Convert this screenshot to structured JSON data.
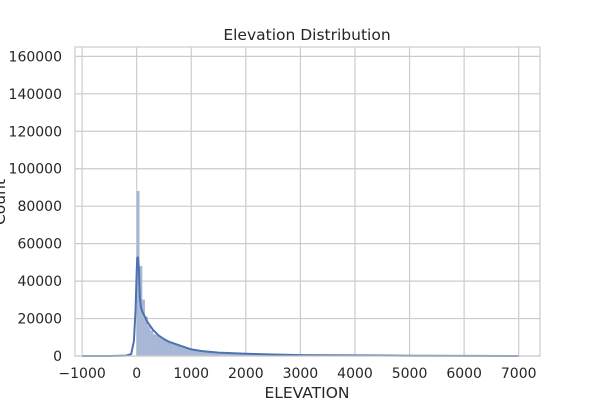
{
  "chart_data": {
    "type": "histogram",
    "title": "Elevation Distribution",
    "xlabel": "ELEVATION",
    "ylabel": "Count",
    "xlim": [
      -1130,
      7390
    ],
    "ylim": [
      0,
      165000
    ],
    "xticks": [
      -1000,
      0,
      1000,
      2000,
      3000,
      4000,
      5000,
      6000,
      7000
    ],
    "xtick_labels": [
      "−1000",
      "0",
      "1000",
      "2000",
      "3000",
      "4000",
      "5000",
      "6000",
      "7000"
    ],
    "yticks": [
      0,
      20000,
      40000,
      60000,
      80000,
      100000,
      120000,
      140000,
      160000
    ],
    "ytick_labels": [
      "0",
      "20000",
      "40000",
      "60000",
      "80000",
      "100000",
      "120000",
      "140000",
      "160000"
    ],
    "grid": true,
    "colors": {
      "bars": "#a7b7d6",
      "kde": "#4c72b0",
      "grid": "#cccccc",
      "spine": "#cccccc"
    },
    "kde": {
      "x": [
        -1000,
        -500,
        -200,
        -100,
        -50,
        -20,
        0,
        10,
        20,
        30,
        40,
        50,
        60,
        80,
        100,
        150,
        200,
        300,
        400,
        500,
        600,
        700,
        800,
        1000,
        1200,
        1500,
        2000,
        2500,
        3000,
        4000,
        5000,
        6000,
        7000
      ],
      "y": [
        0,
        0,
        200,
        1000,
        8000,
        25000,
        45000,
        52000,
        53000,
        51000,
        46000,
        38000,
        31000,
        26000,
        24000,
        21000,
        18000,
        14000,
        11000,
        9000,
        7500,
        6500,
        5500,
        3500,
        2600,
        1800,
        1200,
        800,
        500,
        300,
        150,
        80,
        0
      ]
    },
    "bars": {
      "x": [
        0,
        50,
        100,
        150,
        200,
        250,
        300,
        350,
        400,
        450,
        500,
        550,
        600,
        650,
        700,
        750,
        800,
        850,
        900,
        950,
        1000,
        1100,
        1200,
        1300,
        1400,
        1500,
        1700,
        2000,
        2500,
        3000,
        4000,
        5000,
        6000,
        7000
      ],
      "y": [
        88000,
        48000,
        30000,
        21000,
        16000,
        13500,
        11500,
        11000,
        10000,
        9000,
        8500,
        8000,
        7500,
        6500,
        6000,
        5500,
        5000,
        4500,
        4000,
        3500,
        3000,
        2800,
        2500,
        2200,
        2000,
        1800,
        1500,
        1200,
        800,
        500,
        300,
        150,
        80,
        40
      ]
    }
  }
}
